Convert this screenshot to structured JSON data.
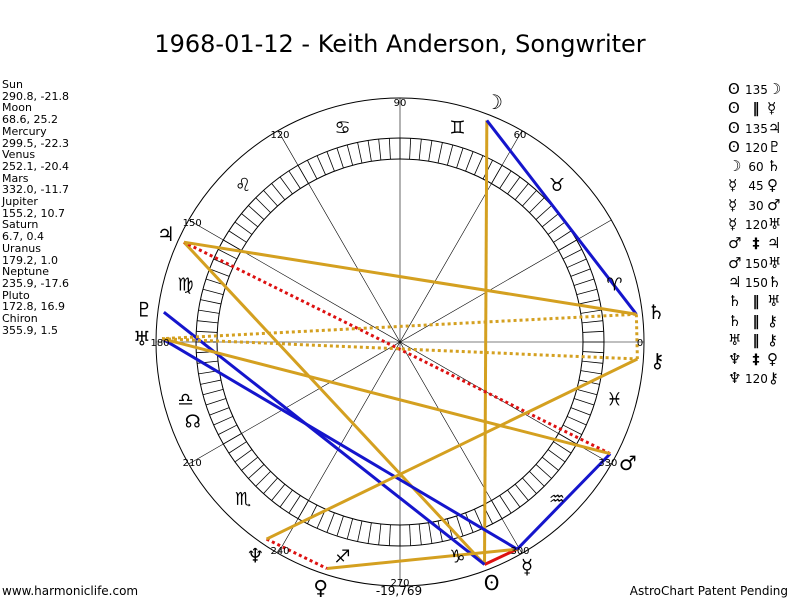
{
  "title": "1968-01-12 - Keith Anderson, Songwriter",
  "positions": [
    {
      "name": "Sun",
      "coords": "290.8, -21.8"
    },
    {
      "name": "Moon",
      "coords": "68.6, 25.2"
    },
    {
      "name": "Mercury",
      "coords": "299.5, -22.3"
    },
    {
      "name": "Venus",
      "coords": "252.1, -20.4"
    },
    {
      "name": "Mars",
      "coords": "332.0, -11.7"
    },
    {
      "name": "Jupiter",
      "coords": "155.2, 10.7"
    },
    {
      "name": "Saturn",
      "coords": "6.7, 0.4"
    },
    {
      "name": "Uranus",
      "coords": "179.2, 1.0"
    },
    {
      "name": "Neptune",
      "coords": "235.9, -17.6"
    },
    {
      "name": "Pluto",
      "coords": "172.8, 16.9"
    },
    {
      "name": "Chiron",
      "coords": "355.9, 1.5"
    }
  ],
  "glyphs": {
    "Sun": "ʘ",
    "Moon": "☽",
    "Mercury": "☿",
    "Venus": "♀",
    "Mars": "♂",
    "Jupiter": "♃",
    "Saturn": "♄",
    "Uranus": "♅",
    "Neptune": "♆",
    "Pluto": "♇",
    "Chiron": "⚷"
  },
  "aspects": [
    {
      "p1": "Sun",
      "aspect": "135",
      "p2": "Moon",
      "color": "#d4a020",
      "style": "solid"
    },
    {
      "p1": "Sun",
      "aspect": "‖",
      "p2": "Mercury",
      "color": "#dd1111",
      "style": "solid"
    },
    {
      "p1": "Sun",
      "aspect": "135",
      "p2": "Jupiter",
      "color": "#d4a020",
      "style": "solid"
    },
    {
      "p1": "Sun",
      "aspect": "120",
      "p2": "Pluto",
      "color": "#1515cc",
      "style": "solid"
    },
    {
      "p1": "Moon",
      "aspect": "60",
      "p2": "Saturn",
      "color": "#1515cc",
      "style": "solid"
    },
    {
      "p1": "Mercury",
      "aspect": "45",
      "p2": "Venus",
      "color": "#d4a020",
      "style": "solid"
    },
    {
      "p1": "Mercury",
      "aspect": "30",
      "p2": "Mars",
      "color": "#1515cc",
      "style": "solid"
    },
    {
      "p1": "Mercury",
      "aspect": "120",
      "p2": "Uranus",
      "color": "#1515cc",
      "style": "solid"
    },
    {
      "p1": "Mars",
      "aspect": "‡",
      "p2": "Jupiter",
      "color": "#dd1111",
      "style": "dotted"
    },
    {
      "p1": "Mars",
      "aspect": "150",
      "p2": "Uranus",
      "color": "#d4a020",
      "style": "solid"
    },
    {
      "p1": "Jupiter",
      "aspect": "150",
      "p2": "Saturn",
      "color": "#d4a020",
      "style": "solid"
    },
    {
      "p1": "Saturn",
      "aspect": "‖",
      "p2": "Uranus",
      "color": "#d4a020",
      "style": "dotted"
    },
    {
      "p1": "Saturn",
      "aspect": "‖",
      "p2": "Chiron",
      "color": "#d4a020",
      "style": "dotted"
    },
    {
      "p1": "Uranus",
      "aspect": "‖",
      "p2": "Chiron",
      "color": "#d4a020",
      "style": "dotted"
    },
    {
      "p1": "Neptune",
      "aspect": "‡",
      "p2": "Venus",
      "color": "#dd1111",
      "style": "dotted"
    },
    {
      "p1": "Neptune",
      "aspect": "120",
      "p2": "Chiron",
      "color": "#d4a020",
      "style": "solid"
    }
  ],
  "wheel": {
    "degree_labels": [
      "0",
      "60",
      "90",
      "120",
      "150",
      "180",
      "210",
      "240",
      "270",
      "300",
      "330"
    ],
    "center_value": "-19,769",
    "signs": [
      {
        "glyph": "♈",
        "lon": 15
      },
      {
        "glyph": "♉",
        "lon": 45
      },
      {
        "glyph": "♊",
        "lon": 75
      },
      {
        "glyph": "♋",
        "lon": 105
      },
      {
        "glyph": "♌",
        "lon": 135
      },
      {
        "glyph": "♍",
        "lon": 165
      },
      {
        "glyph": "♎",
        "lon": 195
      },
      {
        "glyph": "♏",
        "lon": 225
      },
      {
        "glyph": "♐",
        "lon": 255
      },
      {
        "glyph": "♑",
        "lon": 285
      },
      {
        "glyph": "♒",
        "lon": 315
      },
      {
        "glyph": "♓",
        "lon": 345
      }
    ],
    "node": {
      "glyph": "☊",
      "lon": 201
    }
  },
  "footer": {
    "left": "www.harmoniclife.com",
    "right": "AstroChart Patent Pending"
  }
}
